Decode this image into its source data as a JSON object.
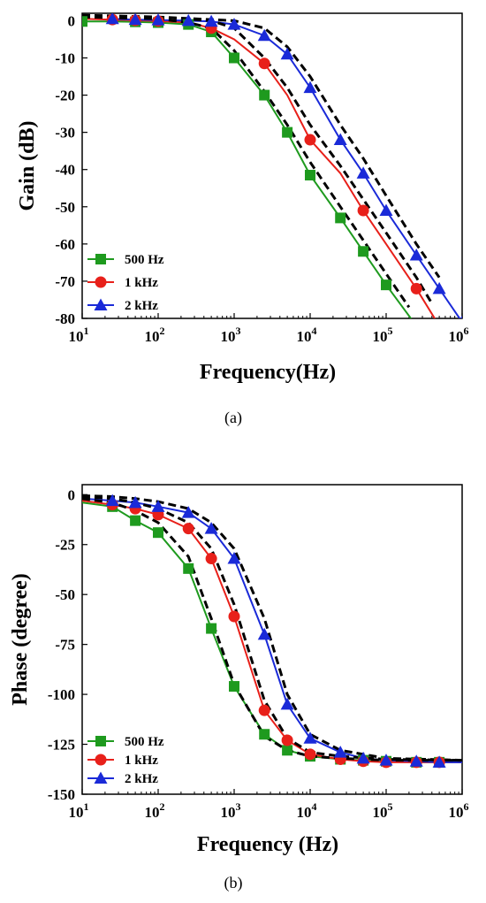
{
  "captions": {
    "a": "(a)",
    "b": "(b)"
  },
  "colors": {
    "500Hz": "#1e9a1e",
    "1kHz": "#e8201a",
    "2kHz": "#1a2ad8",
    "fit": "#000000"
  },
  "chart_data": [
    {
      "type": "line",
      "xscale": "log",
      "xlabel": "Frequency(Hz)",
      "ylabel": "Gain (dB)",
      "xlim": [
        10,
        1000000
      ],
      "ylim": [
        -80,
        2
      ],
      "xticks": [
        {
          "value": 10,
          "base": "10",
          "exp": "1"
        },
        {
          "value": 100,
          "base": "10",
          "exp": "2"
        },
        {
          "value": 1000,
          "base": "10",
          "exp": "3"
        },
        {
          "value": 10000,
          "base": "10",
          "exp": "4"
        },
        {
          "value": 100000,
          "base": "10",
          "exp": "5"
        },
        {
          "value": 1000000,
          "base": "10",
          "exp": "6"
        }
      ],
      "yticks": [
        0,
        -10,
        -20,
        -30,
        -40,
        -50,
        -60,
        -70,
        -80
      ],
      "legend_position": "bottom-left",
      "series": [
        {
          "name": "500 Hz",
          "color": "#1e9a1e",
          "marker": "square",
          "x": [
            10,
            25,
            50,
            100,
            250,
            500,
            1000,
            2500,
            5000,
            10000,
            25000,
            50000,
            100000,
            250000
          ],
          "y": [
            -0.2,
            -0.2,
            -0.3,
            -0.5,
            -1,
            -3,
            -10,
            -20,
            -30,
            -41.5,
            -53,
            -62,
            -71,
            -82
          ],
          "markers": [
            0,
            2,
            3,
            4,
            5,
            6,
            7,
            8,
            9,
            10,
            11,
            12
          ]
        },
        {
          "name": "1 kHz",
          "color": "#e8201a",
          "marker": "circle",
          "x": [
            10,
            25,
            50,
            100,
            250,
            500,
            1000,
            2500,
            5000,
            10000,
            25000,
            50000,
            100000,
            250000,
            500000
          ],
          "y": [
            0.5,
            0.3,
            0.1,
            -0.1,
            -0.5,
            -2,
            -5,
            -11.5,
            -20,
            -32,
            -41,
            -51,
            -60,
            -72,
            -82
          ],
          "markers": [
            1,
            2,
            3,
            5,
            7,
            9,
            11,
            13
          ]
        },
        {
          "name": "2 kHz",
          "color": "#1a2ad8",
          "marker": "triangle",
          "x": [
            25,
            50,
            100,
            250,
            500,
            1000,
            2500,
            5000,
            10000,
            25000,
            50000,
            100000,
            250000,
            500000,
            1000000
          ],
          "y": [
            0.5,
            0.3,
            0.2,
            0,
            -0.2,
            -1,
            -4,
            -9,
            -18,
            -32,
            -41,
            -51,
            -63,
            -72,
            -81
          ],
          "markers": [
            0,
            1,
            2,
            3,
            4,
            5,
            6,
            7,
            8,
            9,
            10,
            11,
            12,
            13,
            14
          ]
        }
      ],
      "fits": [
        {
          "x": [
            10,
            100,
            250,
            500,
            1000,
            2500,
            5000,
            10000,
            25000,
            50000,
            100000,
            200000
          ],
          "y": [
            1,
            0.5,
            -0.5,
            -2,
            -8,
            -19,
            -28,
            -38,
            -50,
            -59,
            -68,
            -77
          ]
        },
        {
          "x": [
            10,
            100,
            500,
            1000,
            2500,
            5000,
            10000,
            25000,
            50000,
            100000,
            250000,
            400000
          ],
          "y": [
            1,
            1,
            0,
            -2,
            -10,
            -18,
            -28,
            -39,
            -48,
            -57,
            -69,
            -76
          ]
        },
        {
          "x": [
            10,
            100,
            1000,
            2500,
            5000,
            10000,
            25000,
            50000,
            100000,
            250000,
            500000
          ],
          "y": [
            1.5,
            1,
            0,
            -2,
            -7,
            -15,
            -28,
            -37,
            -47,
            -60,
            -69
          ]
        }
      ]
    },
    {
      "type": "line",
      "xscale": "log",
      "xlabel": "Frequency (Hz)",
      "ylabel": "Phase (degree)",
      "xlim": [
        10,
        1000000
      ],
      "ylim": [
        -150,
        5
      ],
      "xticks": [
        {
          "value": 10,
          "base": "10",
          "exp": "1"
        },
        {
          "value": 100,
          "base": "10",
          "exp": "2"
        },
        {
          "value": 1000,
          "base": "10",
          "exp": "3"
        },
        {
          "value": 10000,
          "base": "10",
          "exp": "4"
        },
        {
          "value": 100000,
          "base": "10",
          "exp": "5"
        },
        {
          "value": 1000000,
          "base": "10",
          "exp": "6"
        }
      ],
      "yticks": [
        0,
        -25,
        -50,
        -75,
        -100,
        -125,
        -150
      ],
      "legend_position": "bottom-left",
      "series": [
        {
          "name": "500 Hz",
          "color": "#1e9a1e",
          "marker": "square",
          "x": [
            10,
            25,
            50,
            100,
            250,
            500,
            1000,
            2500,
            5000,
            10000,
            25000,
            50000,
            100000,
            250000,
            500000,
            1000000
          ],
          "y": [
            -4,
            -6,
            -13,
            -19,
            -37,
            -67,
            -96,
            -120,
            -128,
            -131,
            -132.5,
            -133,
            -133.5,
            -134,
            -134,
            -134
          ],
          "markers": [
            1,
            2,
            3,
            4,
            5,
            6,
            7,
            8,
            9,
            10,
            11,
            12,
            13,
            14
          ]
        },
        {
          "name": "1 kHz",
          "color": "#e8201a",
          "marker": "circle",
          "x": [
            10,
            25,
            50,
            100,
            250,
            500,
            1000,
            2500,
            5000,
            10000,
            25000,
            50000,
            100000,
            250000,
            500000,
            1000000
          ],
          "y": [
            -3,
            -5,
            -7,
            -10,
            -17,
            -32,
            -61,
            -108,
            -123,
            -130,
            -132.5,
            -133.5,
            -134,
            -134,
            -134,
            -134
          ],
          "markers": [
            1,
            2,
            3,
            4,
            5,
            6,
            7,
            8,
            9,
            10,
            11,
            12,
            13,
            14
          ]
        },
        {
          "name": "2 kHz",
          "color": "#1a2ad8",
          "marker": "triangle",
          "x": [
            10,
            25,
            50,
            100,
            250,
            500,
            1000,
            2500,
            5000,
            10000,
            25000,
            50000,
            100000,
            250000,
            500000,
            1000000
          ],
          "y": [
            -2,
            -3,
            -4,
            -6,
            -9,
            -17,
            -32,
            -70,
            -105,
            -122,
            -129,
            -132,
            -133,
            -133.5,
            -134,
            -134
          ],
          "markers": [
            1,
            2,
            3,
            4,
            5,
            6,
            7,
            8,
            9,
            10,
            11,
            12,
            13,
            14
          ]
        }
      ],
      "fits": [
        {
          "x": [
            10,
            25,
            50,
            100,
            250,
            500,
            1000,
            2500,
            5000,
            10000,
            25000,
            100000,
            1000000
          ],
          "y": [
            -2,
            -4,
            -8,
            -14,
            -31,
            -62,
            -95,
            -121,
            -128,
            -131,
            -132,
            -133,
            -133
          ]
        },
        {
          "x": [
            10,
            25,
            50,
            100,
            250,
            500,
            1000,
            2500,
            5000,
            10000,
            25000,
            100000,
            1000000
          ],
          "y": [
            -1,
            -2,
            -4,
            -7,
            -14,
            -27,
            -55,
            -103,
            -122,
            -129,
            -131,
            -132.5,
            -133
          ]
        },
        {
          "x": [
            10,
            25,
            50,
            100,
            250,
            500,
            1000,
            2500,
            5000,
            10000,
            25000,
            100000,
            1000000
          ],
          "y": [
            -0.5,
            -1,
            -2,
            -3.5,
            -7,
            -14,
            -27,
            -62,
            -100,
            -120,
            -128,
            -132,
            -133
          ]
        }
      ]
    }
  ]
}
